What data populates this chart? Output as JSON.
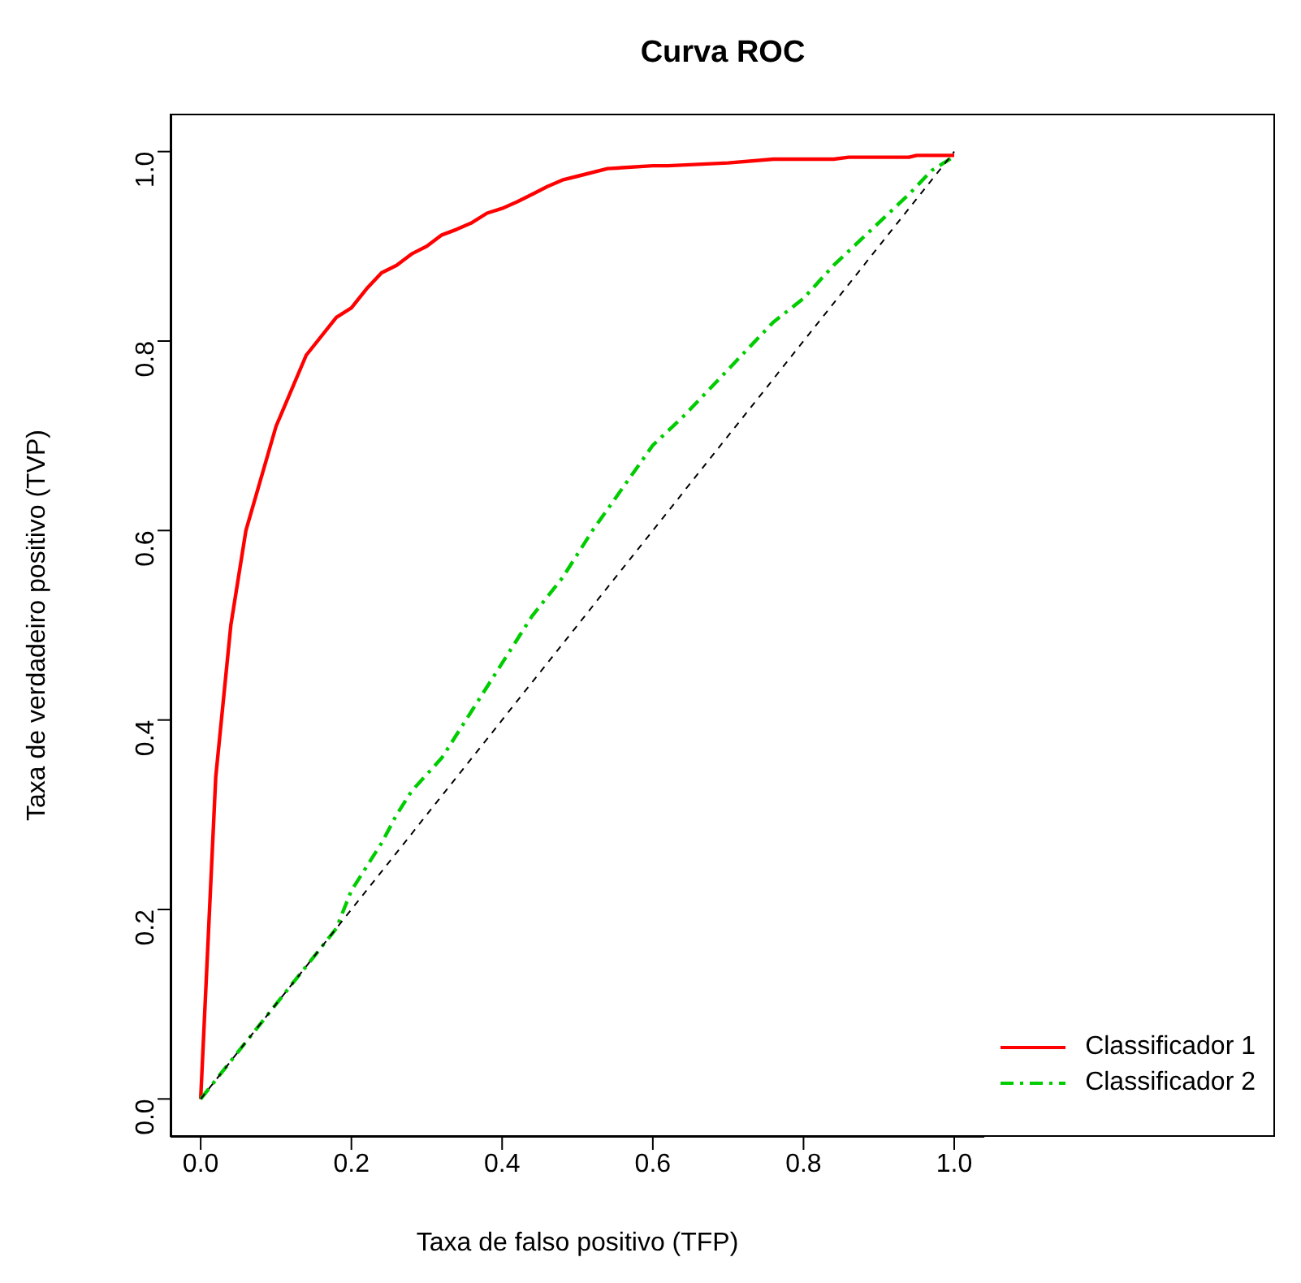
{
  "chart_data": {
    "type": "line",
    "title": "Curva ROC",
    "xlabel": "Taxa de falso positivo (TFP)",
    "ylabel": "Taxa de verdadeiro positivo (TVP)",
    "xlim": [
      -0.04,
      1.04
    ],
    "ylim": [
      -0.04,
      1.04
    ],
    "xticks": [
      {
        "value": 0,
        "label": "0.0"
      },
      0.2,
      0.4,
      0.6,
      0.8,
      {
        "value": 1,
        "label": "1.0"
      }
    ],
    "yticks": [
      {
        "value": 0,
        "label": "0.0"
      },
      0.2,
      0.4,
      0.6,
      0.8,
      {
        "value": 1,
        "label": "1.0"
      }
    ],
    "grid": false,
    "legend": "bottom right",
    "marker": "none",
    "series": [
      {
        "name": "Classificador 1",
        "color": "#ff0000",
        "line_style": "solid",
        "x": [
          0,
          0.02,
          0.04,
          0.06,
          0.1,
          0.14,
          0.18,
          0.2,
          0.22,
          0.24,
          0.26,
          0.28,
          0.3,
          0.32,
          0.34,
          0.36,
          0.38,
          0.4,
          0.42,
          0.44,
          0.46,
          0.48,
          0.5,
          0.54,
          0.6,
          0.62,
          0.7,
          0.76,
          0.84,
          0.86,
          0.94,
          0.95,
          1
        ],
        "values": [
          0,
          0.34,
          0.5,
          0.6,
          0.71,
          0.785,
          0.825,
          0.835,
          0.855,
          0.872,
          0.88,
          0.892,
          0.9,
          0.912,
          0.918,
          0.925,
          0.935,
          0.94,
          0.947,
          0.955,
          0.963,
          0.97,
          0.974,
          0.982,
          0.985,
          0.985,
          0.988,
          0.992,
          0.992,
          0.994,
          0.994,
          0.996,
          0.996
        ]
      },
      {
        "name": "Classificador 2",
        "color": "#00cd00",
        "line_style": "dashdot",
        "x": [
          0,
          0.04,
          0.1,
          0.14,
          0.18,
          0.2,
          0.24,
          0.26,
          0.28,
          0.32,
          0.36,
          0.4,
          0.44,
          0.46,
          0.48,
          0.52,
          0.56,
          0.6,
          0.64,
          0.7,
          0.76,
          0.8,
          0.84,
          0.88,
          0.94,
          0.97,
          1
        ],
        "values": [
          0,
          0.04,
          0.1,
          0.14,
          0.18,
          0.22,
          0.27,
          0.3,
          0.325,
          0.36,
          0.41,
          0.46,
          0.51,
          0.53,
          0.55,
          0.6,
          0.645,
          0.69,
          0.72,
          0.77,
          0.82,
          0.845,
          0.88,
          0.91,
          0.955,
          0.98,
          0.995
        ]
      },
      {
        "color": "#000000",
        "line_style": "dashed",
        "x": [
          0,
          1
        ],
        "values": [
          0,
          1
        ]
      }
    ]
  }
}
